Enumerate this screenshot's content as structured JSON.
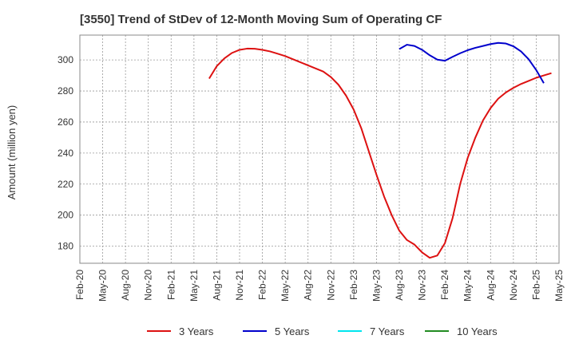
{
  "chart_data": {
    "type": "line",
    "title": "[3550]  Trend of StDev of 12-Month Moving Sum of Operating CF",
    "xlabel": "",
    "ylabel": "Amount (million yen)",
    "ylim": [
      169,
      316
    ],
    "yticks": [
      180,
      200,
      220,
      240,
      260,
      280,
      300
    ],
    "xlim": [
      "2020-02",
      "2025-05"
    ],
    "xticks": [
      "Feb-20",
      "May-20",
      "Aug-20",
      "Nov-20",
      "Feb-21",
      "May-21",
      "Aug-21",
      "Nov-21",
      "Feb-22",
      "May-22",
      "Aug-22",
      "Nov-22",
      "Feb-23",
      "May-23",
      "Aug-23",
      "Nov-23",
      "Feb-24",
      "May-24",
      "Aug-24",
      "Nov-24",
      "Feb-25",
      "May-25"
    ],
    "grid": true,
    "legend_position": "bottom",
    "series": [
      {
        "name": "3 Years",
        "color": "#dd1111",
        "points": [
          [
            "2021-07",
            288
          ],
          [
            "2021-08",
            296
          ],
          [
            "2021-09",
            301
          ],
          [
            "2021-10",
            304.5
          ],
          [
            "2021-11",
            306.5
          ],
          [
            "2021-12",
            307.3
          ],
          [
            "2022-01",
            307.2
          ],
          [
            "2022-02",
            306.5
          ],
          [
            "2022-03",
            305.5
          ],
          [
            "2022-04",
            304
          ],
          [
            "2022-05",
            302.5
          ],
          [
            "2022-06",
            300.5
          ],
          [
            "2022-07",
            298.5
          ],
          [
            "2022-08",
            296.5
          ],
          [
            "2022-09",
            294.5
          ],
          [
            "2022-10",
            292.5
          ],
          [
            "2022-11",
            289
          ],
          [
            "2022-12",
            284
          ],
          [
            "2023-01",
            277
          ],
          [
            "2023-02",
            268
          ],
          [
            "2023-03",
            256
          ],
          [
            "2023-04",
            241
          ],
          [
            "2023-05",
            226
          ],
          [
            "2023-06",
            212
          ],
          [
            "2023-07",
            200
          ],
          [
            "2023-08",
            190
          ],
          [
            "2023-09",
            184
          ],
          [
            "2023-10",
            181
          ],
          [
            "2023-11",
            176
          ],
          [
            "2023-12",
            172.5
          ],
          [
            "2024-01",
            174
          ],
          [
            "2024-02",
            182
          ],
          [
            "2024-03",
            198
          ],
          [
            "2024-04",
            220
          ],
          [
            "2024-05",
            237
          ],
          [
            "2024-06",
            250
          ],
          [
            "2024-07",
            261
          ],
          [
            "2024-08",
            269
          ],
          [
            "2024-09",
            275
          ],
          [
            "2024-10",
            279
          ],
          [
            "2024-11",
            282
          ],
          [
            "2024-12",
            284.5
          ],
          [
            "2025-01",
            286.5
          ],
          [
            "2025-02",
            288.5
          ],
          [
            "2025-03",
            290
          ],
          [
            "2025-04",
            291.5
          ]
        ]
      },
      {
        "name": "5 Years",
        "color": "#0000cc",
        "points": [
          [
            "2023-08",
            307
          ],
          [
            "2023-09",
            309.8
          ],
          [
            "2023-10",
            309
          ],
          [
            "2023-11",
            306.5
          ],
          [
            "2023-12",
            303
          ],
          [
            "2024-01",
            300.2
          ],
          [
            "2024-02",
            299.5
          ],
          [
            "2024-03",
            302
          ],
          [
            "2024-04",
            304.3
          ],
          [
            "2024-05",
            306.3
          ],
          [
            "2024-06",
            307.8
          ],
          [
            "2024-07",
            309
          ],
          [
            "2024-08",
            310.2
          ],
          [
            "2024-09",
            311
          ],
          [
            "2024-10",
            310.6
          ],
          [
            "2024-11",
            308.8
          ],
          [
            "2024-12",
            305.5
          ],
          [
            "2025-01",
            300.5
          ],
          [
            "2025-02",
            293.5
          ],
          [
            "2025-03",
            285
          ]
        ]
      },
      {
        "name": "7 Years",
        "color": "#00e5ee",
        "points": []
      },
      {
        "name": "10 Years",
        "color": "#228b22",
        "points": []
      }
    ]
  }
}
